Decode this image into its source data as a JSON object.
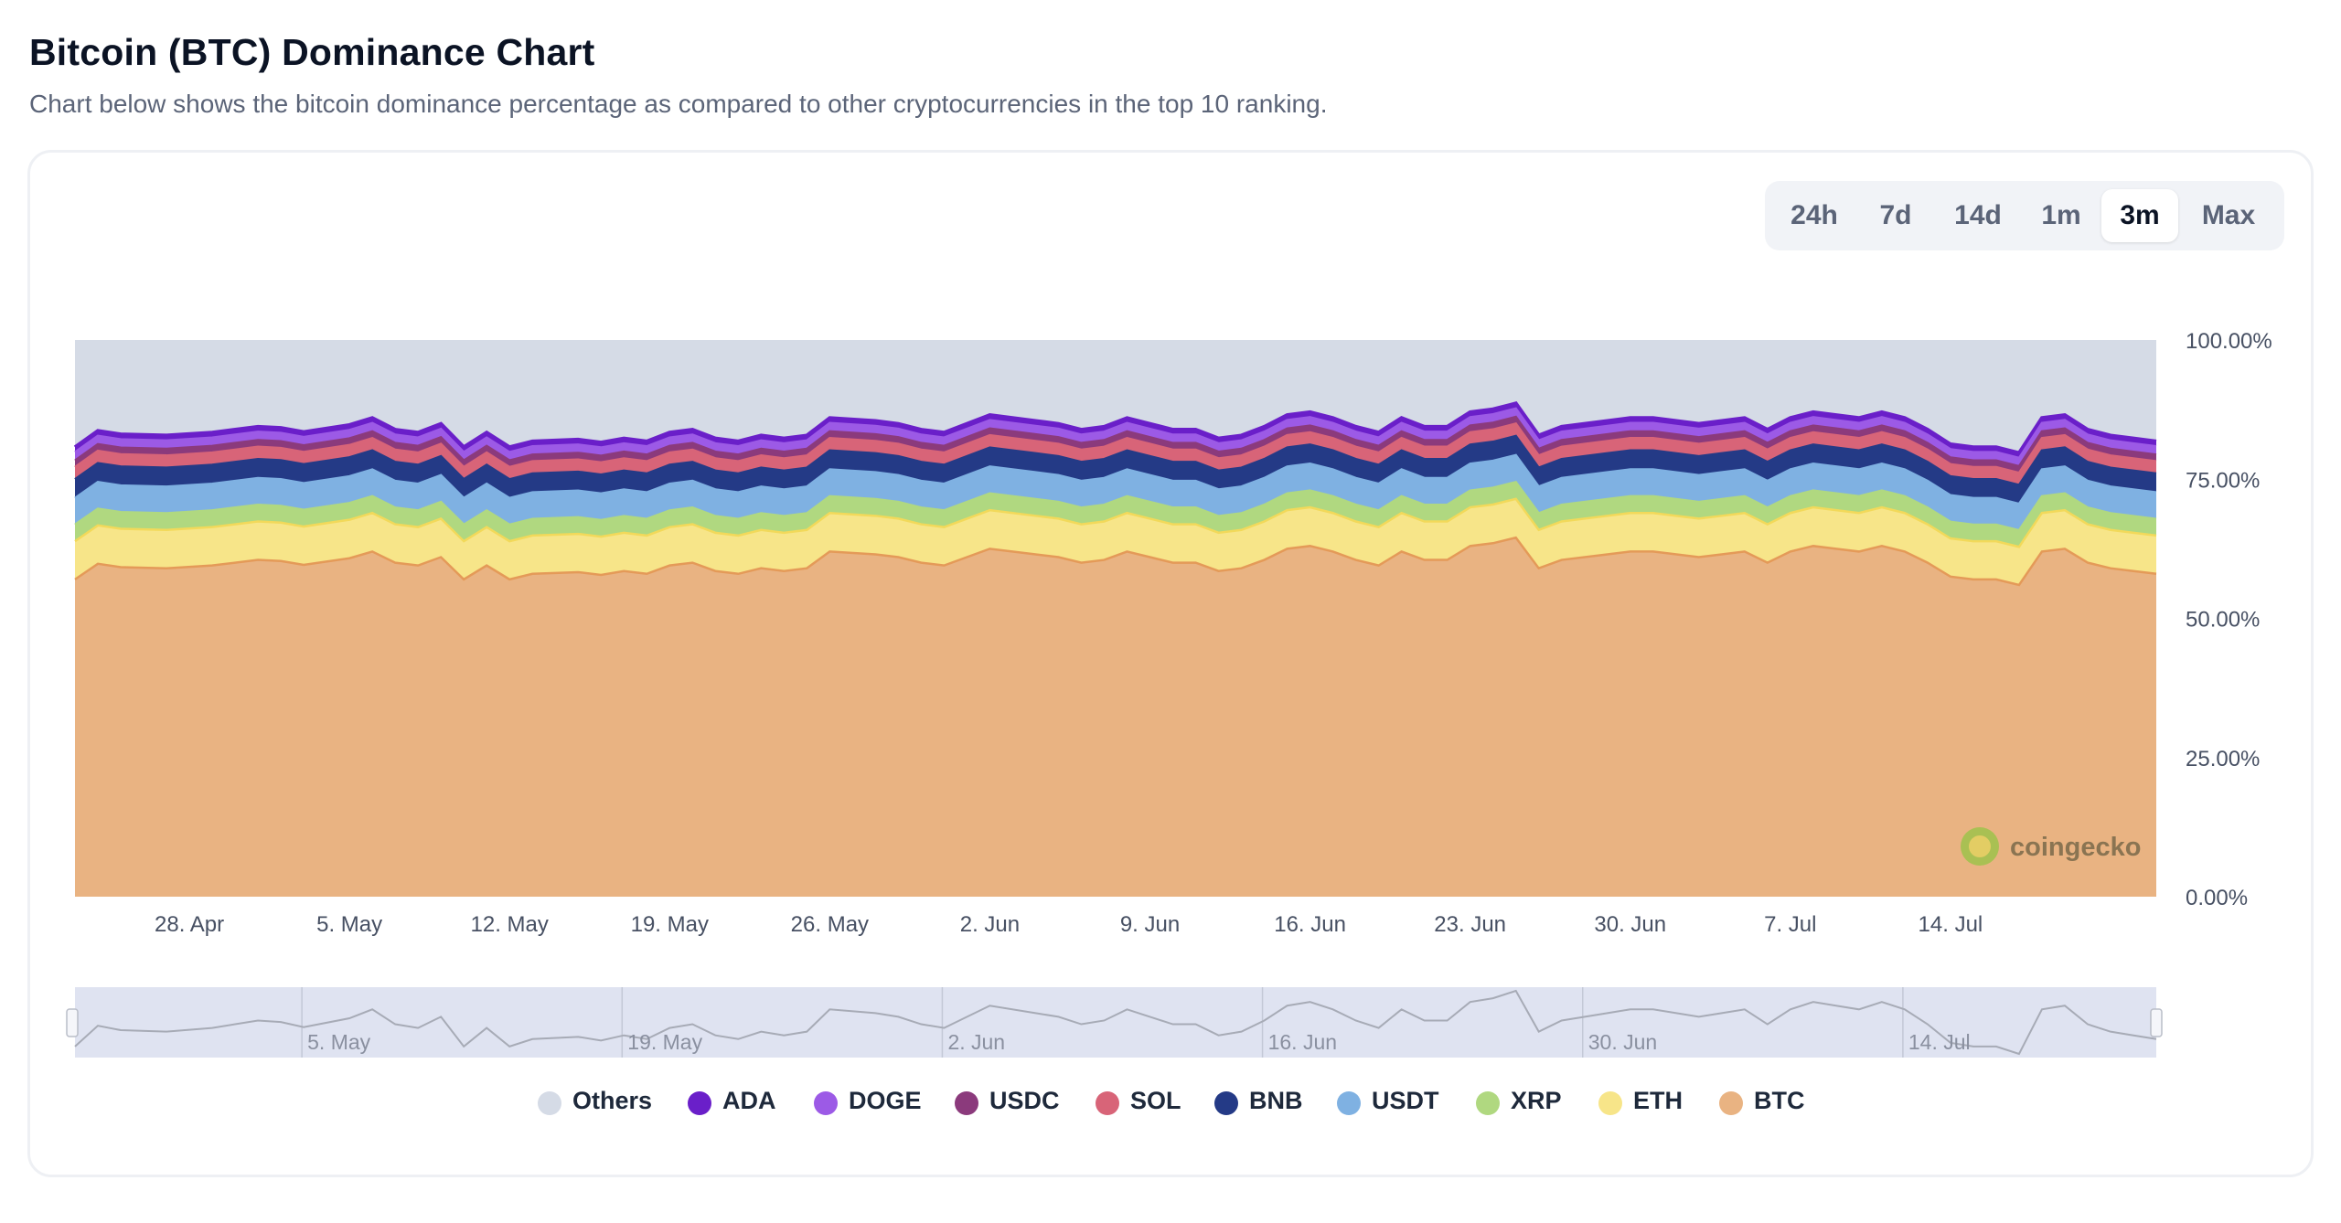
{
  "header": {
    "title": "Bitcoin (BTC) Dominance Chart",
    "subtitle": "Chart below shows the bitcoin dominance percentage as compared to other cryptocurrencies in the top 10 ranking."
  },
  "range_buttons": [
    {
      "label": "24h",
      "active": false
    },
    {
      "label": "7d",
      "active": false
    },
    {
      "label": "14d",
      "active": false
    },
    {
      "label": "1m",
      "active": false
    },
    {
      "label": "3m",
      "active": true
    },
    {
      "label": "Max",
      "active": false
    }
  ],
  "watermark": "coingecko",
  "colors": {
    "Others": "#d5dbe6",
    "ADA": "#6a1fc9",
    "DOGE": "#9c5ae6",
    "USDC": "#8b3a7c",
    "SOL": "#d86478",
    "BNB": "#243a86",
    "USDT": "#7fb1e2",
    "XRP": "#b0d880",
    "ETH": "#f7e589",
    "BTC": "#e9b382",
    "navigator_bg": "#dfe3f1"
  },
  "chart_data": {
    "type": "area",
    "stacking": "percent",
    "title": "Bitcoin (BTC) Dominance Chart",
    "y_axis": {
      "ticks": [
        "100.00%",
        "75.00%",
        "50.00%",
        "25.00%",
        "0.00%"
      ],
      "range": [
        0,
        100
      ]
    },
    "x_axis": {
      "start_day": 0,
      "end_day": 91,
      "ticks": [
        {
          "label": "28. Apr",
          "day": 5
        },
        {
          "label": "5. May",
          "day": 12
        },
        {
          "label": "12. May",
          "day": 19
        },
        {
          "label": "19. May",
          "day": 26
        },
        {
          "label": "26. May",
          "day": 33
        },
        {
          "label": "2. Jun",
          "day": 40
        },
        {
          "label": "9. Jun",
          "day": 47
        },
        {
          "label": "16. Jun",
          "day": 54
        },
        {
          "label": "23. Jun",
          "day": 61
        },
        {
          "label": "30. Jun",
          "day": 68
        },
        {
          "label": "7. Jul",
          "day": 75
        },
        {
          "label": "14. Jul",
          "day": 82
        }
      ]
    },
    "navigator_ticks": [
      {
        "label": "5. May",
        "day": 12
      },
      {
        "label": "19. May",
        "day": 26
      },
      {
        "label": "2. Jun",
        "day": 40
      },
      {
        "label": "16. Jun",
        "day": 54
      },
      {
        "label": "30. Jun",
        "day": 68
      },
      {
        "label": "14. Jul",
        "day": 82
      }
    ],
    "series_order_bottom_to_top": [
      "BTC",
      "ETH",
      "XRP",
      "USDT",
      "BNB",
      "SOL",
      "USDC",
      "DOGE",
      "ADA",
      "Others"
    ],
    "legend_order": [
      "Others",
      "ADA",
      "DOGE",
      "USDC",
      "SOL",
      "BNB",
      "USDT",
      "XRP",
      "ETH",
      "BTC"
    ],
    "shares": {
      "ETH": 6.9,
      "XRP": 3.0,
      "USDT": 4.8,
      "BNB": 3.4,
      "SOL": 2.2,
      "USDC": 1.2,
      "DOGE": 1.5,
      "ADA": 0.9
    },
    "btc_points": [
      {
        "day": 0,
        "value": 57.0
      },
      {
        "day": 1,
        "value": 59.8
      },
      {
        "day": 2,
        "value": 59.2
      },
      {
        "day": 4,
        "value": 59.0
      },
      {
        "day": 6,
        "value": 59.5
      },
      {
        "day": 8,
        "value": 60.5
      },
      {
        "day": 9,
        "value": 60.3
      },
      {
        "day": 10,
        "value": 59.6
      },
      {
        "day": 12,
        "value": 60.8
      },
      {
        "day": 13,
        "value": 62.0
      },
      {
        "day": 14,
        "value": 60.0
      },
      {
        "day": 15,
        "value": 59.5
      },
      {
        "day": 16,
        "value": 61.0
      },
      {
        "day": 17,
        "value": 57.0
      },
      {
        "day": 18,
        "value": 59.5
      },
      {
        "day": 19,
        "value": 57.0
      },
      {
        "day": 20,
        "value": 58.0
      },
      {
        "day": 22,
        "value": 58.3
      },
      {
        "day": 23,
        "value": 57.8
      },
      {
        "day": 24,
        "value": 58.5
      },
      {
        "day": 25,
        "value": 58.0
      },
      {
        "day": 26,
        "value": 59.5
      },
      {
        "day": 27,
        "value": 60.0
      },
      {
        "day": 28,
        "value": 58.5
      },
      {
        "day": 29,
        "value": 58.0
      },
      {
        "day": 30,
        "value": 59.0
      },
      {
        "day": 31,
        "value": 58.5
      },
      {
        "day": 32,
        "value": 59.0
      },
      {
        "day": 33,
        "value": 62.0
      },
      {
        "day": 35,
        "value": 61.5
      },
      {
        "day": 36,
        "value": 61.0
      },
      {
        "day": 37,
        "value": 60.0
      },
      {
        "day": 38,
        "value": 59.5
      },
      {
        "day": 40,
        "value": 62.5
      },
      {
        "day": 42,
        "value": 61.5
      },
      {
        "day": 43,
        "value": 61.0
      },
      {
        "day": 44,
        "value": 60.0
      },
      {
        "day": 45,
        "value": 60.5
      },
      {
        "day": 46,
        "value": 62.0
      },
      {
        "day": 47,
        "value": 61.0
      },
      {
        "day": 48,
        "value": 60.0
      },
      {
        "day": 49,
        "value": 60.0
      },
      {
        "day": 50,
        "value": 58.5
      },
      {
        "day": 51,
        "value": 59.0
      },
      {
        "day": 52,
        "value": 60.5
      },
      {
        "day": 53,
        "value": 62.5
      },
      {
        "day": 54,
        "value": 63.0
      },
      {
        "day": 55,
        "value": 62.0
      },
      {
        "day": 56,
        "value": 60.5
      },
      {
        "day": 57,
        "value": 59.5
      },
      {
        "day": 58,
        "value": 62.0
      },
      {
        "day": 59,
        "value": 60.5
      },
      {
        "day": 60,
        "value": 60.5
      },
      {
        "day": 61,
        "value": 63.0
      },
      {
        "day": 62,
        "value": 63.5
      },
      {
        "day": 63,
        "value": 64.5
      },
      {
        "day": 64,
        "value": 59.0
      },
      {
        "day": 65,
        "value": 60.5
      },
      {
        "day": 67,
        "value": 61.5
      },
      {
        "day": 68,
        "value": 62.0
      },
      {
        "day": 69,
        "value": 62.0
      },
      {
        "day": 71,
        "value": 61.0
      },
      {
        "day": 72,
        "value": 61.5
      },
      {
        "day": 73,
        "value": 62.0
      },
      {
        "day": 74,
        "value": 60.0
      },
      {
        "day": 75,
        "value": 62.0
      },
      {
        "day": 76,
        "value": 63.0
      },
      {
        "day": 77,
        "value": 62.5
      },
      {
        "day": 78,
        "value": 62.0
      },
      {
        "day": 79,
        "value": 63.0
      },
      {
        "day": 80,
        "value": 62.0
      },
      {
        "day": 81,
        "value": 60.0
      },
      {
        "day": 82,
        "value": 57.5
      },
      {
        "day": 83,
        "value": 57.0
      },
      {
        "day": 84,
        "value": 57.0
      },
      {
        "day": 85,
        "value": 56.0
      },
      {
        "day": 86,
        "value": 62.0
      },
      {
        "day": 87,
        "value": 62.5
      },
      {
        "day": 88,
        "value": 60.0
      },
      {
        "day": 89,
        "value": 59.0
      },
      {
        "day": 90,
        "value": 58.5
      },
      {
        "day": 91,
        "value": 58.0
      }
    ]
  }
}
